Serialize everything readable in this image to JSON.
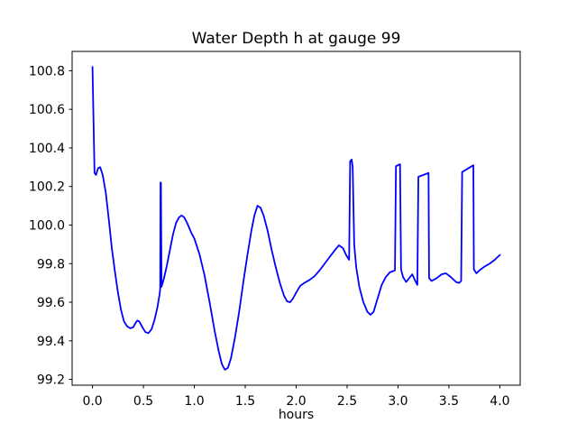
{
  "chart_data": {
    "type": "line",
    "title": "Water Depth h at gauge 99",
    "xlabel": "hours",
    "ylabel": "",
    "grid": false,
    "legend": null,
    "line_color": "#0000ff",
    "axis_color": "#000000",
    "background_color": "#ffffff",
    "xlim": [
      -0.2,
      4.2
    ],
    "ylim": [
      99.17,
      100.9
    ],
    "xticks": [
      0.0,
      0.5,
      1.0,
      1.5,
      2.0,
      2.5,
      3.0,
      3.5,
      4.0
    ],
    "xtick_labels": [
      "0.0",
      "0.5",
      "1.0",
      "1.5",
      "2.0",
      "2.5",
      "3.0",
      "3.5",
      "4.0"
    ],
    "yticks": [
      99.2,
      99.4,
      99.6,
      99.8,
      100.0,
      100.2,
      100.4,
      100.6,
      100.8
    ],
    "ytick_labels": [
      "99.2",
      "99.4",
      "99.6",
      "99.8",
      "100.0",
      "100.2",
      "100.4",
      "100.6",
      "100.8"
    ],
    "series": [
      {
        "name": "h",
        "x": [
          0.0,
          0.02,
          0.035,
          0.055,
          0.075,
          0.1,
          0.13,
          0.16,
          0.19,
          0.22,
          0.25,
          0.28,
          0.31,
          0.34,
          0.37,
          0.4,
          0.42,
          0.44,
          0.46,
          0.49,
          0.52,
          0.55,
          0.58,
          0.61,
          0.64,
          0.66,
          0.665,
          0.668,
          0.672,
          0.678,
          0.7,
          0.73,
          0.76,
          0.79,
          0.82,
          0.85,
          0.875,
          0.9,
          0.93,
          0.97,
          1.0,
          1.05,
          1.1,
          1.15,
          1.2,
          1.24,
          1.27,
          1.3,
          1.33,
          1.36,
          1.4,
          1.44,
          1.48,
          1.52,
          1.56,
          1.59,
          1.62,
          1.65,
          1.68,
          1.72,
          1.76,
          1.8,
          1.84,
          1.88,
          1.91,
          1.94,
          1.97,
          2.0,
          2.04,
          2.08,
          2.13,
          2.18,
          2.23,
          2.28,
          2.33,
          2.38,
          2.42,
          2.46,
          2.49,
          2.52,
          2.53,
          2.545,
          2.555,
          2.57,
          2.59,
          2.62,
          2.66,
          2.7,
          2.73,
          2.76,
          2.8,
          2.84,
          2.88,
          2.92,
          2.97,
          2.98,
          3.02,
          3.03,
          3.05,
          3.08,
          3.11,
          3.14,
          3.17,
          3.19,
          3.2,
          3.3,
          3.305,
          3.33,
          3.38,
          3.43,
          3.47,
          3.52,
          3.57,
          3.6,
          3.62,
          3.63,
          3.74,
          3.745,
          3.77,
          3.8,
          3.85,
          3.9,
          3.95,
          4.0
        ],
        "y": [
          100.82,
          100.27,
          100.26,
          100.295,
          100.3,
          100.26,
          100.17,
          100.03,
          99.88,
          99.76,
          99.65,
          99.56,
          99.5,
          99.475,
          99.465,
          99.47,
          99.49,
          99.505,
          99.5,
          99.47,
          99.445,
          99.44,
          99.46,
          99.51,
          99.58,
          99.645,
          99.67,
          100.22,
          100.22,
          99.68,
          99.72,
          99.79,
          99.87,
          99.95,
          100.01,
          100.04,
          100.05,
          100.04,
          100.01,
          99.96,
          99.93,
          99.85,
          99.74,
          99.6,
          99.45,
          99.345,
          99.28,
          99.25,
          99.26,
          99.31,
          99.42,
          99.55,
          99.7,
          99.84,
          99.97,
          100.05,
          100.1,
          100.09,
          100.05,
          99.97,
          99.87,
          99.78,
          99.7,
          99.635,
          99.605,
          99.6,
          99.62,
          99.65,
          99.685,
          99.7,
          99.715,
          99.735,
          99.765,
          99.8,
          99.835,
          99.87,
          99.895,
          99.88,
          99.845,
          99.82,
          100.33,
          100.34,
          100.3,
          99.9,
          99.78,
          99.68,
          99.6,
          99.55,
          99.535,
          99.55,
          99.62,
          99.69,
          99.73,
          99.755,
          99.765,
          100.305,
          100.315,
          99.77,
          99.73,
          99.705,
          99.725,
          99.745,
          99.71,
          99.69,
          100.25,
          100.27,
          99.725,
          99.71,
          99.725,
          99.745,
          99.75,
          99.73,
          99.705,
          99.7,
          99.71,
          100.275,
          100.31,
          99.77,
          99.75,
          99.765,
          99.785,
          99.8,
          99.82,
          99.845
        ]
      }
    ]
  }
}
